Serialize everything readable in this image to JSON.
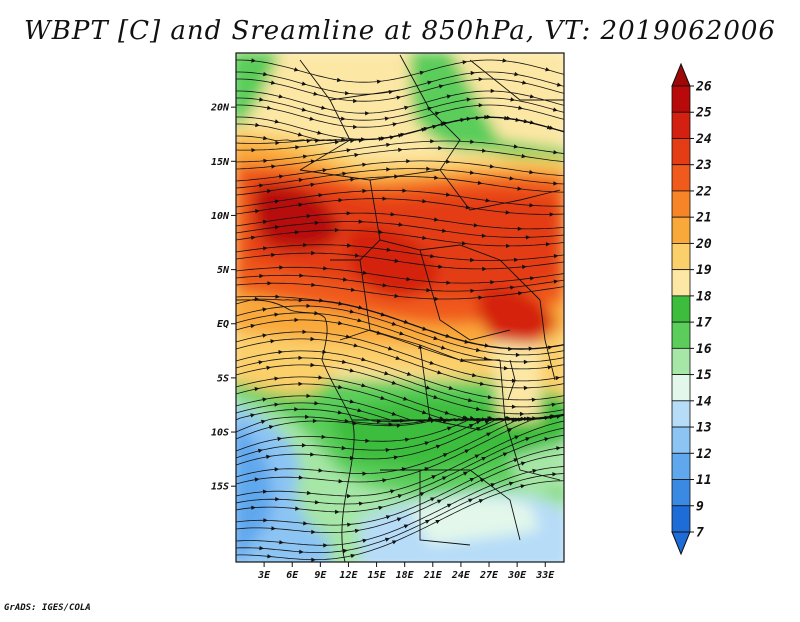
{
  "title": "WBPT [C] and Sreamline at 850hPa, VT: 2019062006",
  "credit": "GrADS: IGES/COLA",
  "map": {
    "lon_range": [
      0,
      35
    ],
    "lat_range": [
      -22,
      25
    ],
    "lon_ticks": [
      "3E",
      "6E",
      "9E",
      "12E",
      "15E",
      "18E",
      "21E",
      "24E",
      "27E",
      "30E",
      "33E"
    ],
    "lon_tick_values": [
      3,
      6,
      9,
      12,
      15,
      18,
      21,
      24,
      27,
      30,
      33
    ],
    "lat_ticks": [
      "20N",
      "15N",
      "10N",
      "5N",
      "EQ",
      "5S",
      "10S",
      "15S"
    ],
    "lat_tick_values": [
      20,
      15,
      10,
      5,
      0,
      -5,
      -10,
      -15
    ]
  },
  "colorbar": {
    "labels": [
      "26",
      "25",
      "24",
      "23",
      "22",
      "21",
      "20",
      "19",
      "18",
      "17",
      "16",
      "15",
      "14",
      "13",
      "12",
      "11",
      "9",
      "7"
    ],
    "colors": [
      "#b80a0a",
      "#d42010",
      "#e43c14",
      "#f05a1c",
      "#f78426",
      "#f9a93a",
      "#fbcf6a",
      "#fce7a4",
      "#3cbd3c",
      "#5acd5a",
      "#a6e6a6",
      "#e3f8ea",
      "#b6dcf8",
      "#8cc4f4",
      "#60a8ee",
      "#3a8ae4",
      "#1e6cd8"
    ]
  },
  "legend": {
    "top_arrow_color": "#a00808",
    "bottom_arrow_color": "#1e6cd8"
  }
}
